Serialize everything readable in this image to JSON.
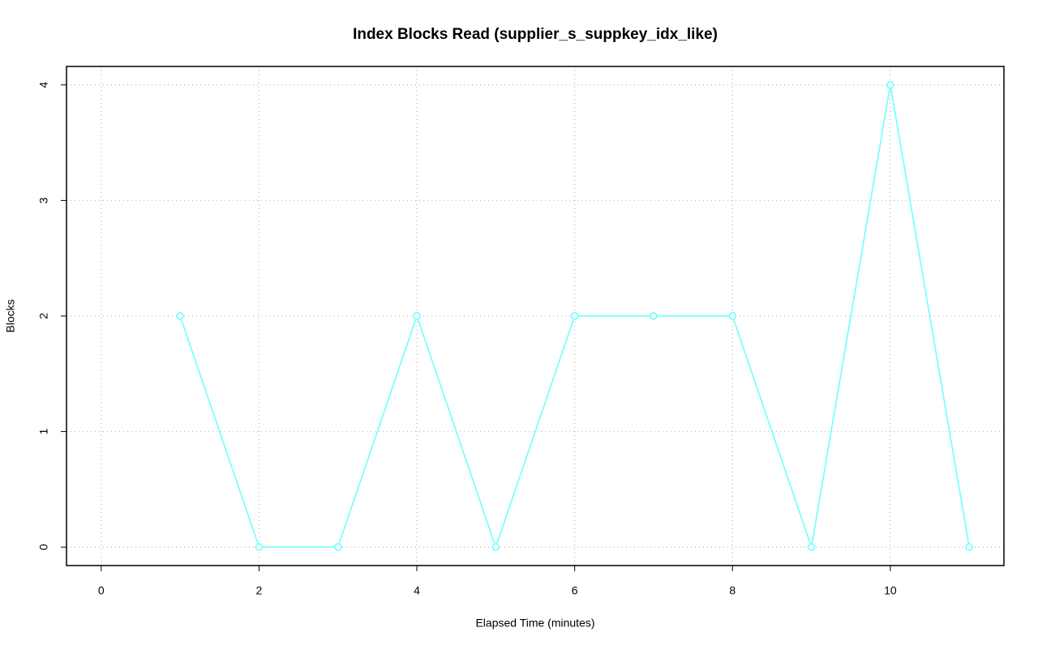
{
  "chart_data": {
    "type": "line",
    "title": "Index Blocks Read (supplier_s_suppkey_idx_like)",
    "x_label": "Elapsed Time (minutes)",
    "y_label": "Blocks",
    "x": [
      1,
      2,
      3,
      4,
      5,
      6,
      7,
      8,
      9,
      10,
      11
    ],
    "values": [
      2,
      0,
      0,
      2,
      0,
      2,
      2,
      2,
      0,
      4,
      0
    ],
    "color": "#66ffff",
    "xlim": [
      -0.44,
      11.44
    ],
    "xticks": [
      0,
      2,
      4,
      6,
      8,
      10
    ],
    "ylim": [
      -0.16,
      4.16
    ],
    "yticks": [
      0,
      1,
      2,
      3,
      4
    ],
    "grid": true
  }
}
